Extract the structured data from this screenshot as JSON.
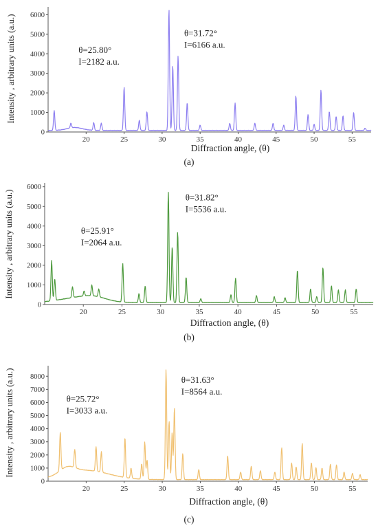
{
  "chart_data": [
    {
      "type": "line",
      "panel_label": "(a)",
      "xlabel": "Diffraction angle, (θ)",
      "ylabel": "Intensity , arbitrary units (a.u.)",
      "xlim": [
        15.0,
        57.5
      ],
      "ylim": [
        0,
        6400
      ],
      "x_ticks": [
        20,
        25,
        30,
        35,
        40,
        45,
        50,
        55
      ],
      "y_ticks": [
        0,
        1000,
        2000,
        3000,
        4000,
        5000,
        6000
      ],
      "grid": false,
      "color": "#8d7ff0",
      "baseline": 80,
      "bumps": [
        {
          "c": 18.5,
          "w": 1.0,
          "h": 150
        }
      ],
      "peaks": [
        {
          "x": 15.8,
          "y": 1100
        },
        {
          "x": 18.0,
          "y": 320
        },
        {
          "x": 21.0,
          "y": 480
        },
        {
          "x": 22.0,
          "y": 450
        },
        {
          "x": 25.0,
          "y": 2300
        },
        {
          "x": 27.0,
          "y": 600
        },
        {
          "x": 28.0,
          "y": 1050
        },
        {
          "x": 30.9,
          "y": 6300
        },
        {
          "x": 31.4,
          "y": 3400
        },
        {
          "x": 32.1,
          "y": 3880
        },
        {
          "x": 33.3,
          "y": 1500
        },
        {
          "x": 35.0,
          "y": 350
        },
        {
          "x": 38.9,
          "y": 450
        },
        {
          "x": 39.6,
          "y": 1480
        },
        {
          "x": 42.2,
          "y": 450
        },
        {
          "x": 44.6,
          "y": 450
        },
        {
          "x": 46.0,
          "y": 350
        },
        {
          "x": 47.6,
          "y": 1850
        },
        {
          "x": 49.2,
          "y": 900
        },
        {
          "x": 50.0,
          "y": 400
        },
        {
          "x": 50.9,
          "y": 2150
        },
        {
          "x": 52.0,
          "y": 1050
        },
        {
          "x": 52.9,
          "y": 800
        },
        {
          "x": 53.8,
          "y": 820
        },
        {
          "x": 55.2,
          "y": 1000
        },
        {
          "x": 56.7,
          "y": 200
        }
      ],
      "annotations": [
        {
          "line1": "θ=25.80°",
          "line2": "I=2182 a.u.",
          "x": 19.0,
          "y": 4050
        },
        {
          "line1": "θ=31.72°",
          "line2": "I=6166 a.u.",
          "x": 32.9,
          "y": 4900
        }
      ]
    },
    {
      "type": "line",
      "panel_label": "(b)",
      "xlabel": "Diffraction angle, (θ)",
      "ylabel": "Intensity , arbitrary units (a.u.)",
      "xlim": [
        15.0,
        57.5
      ],
      "ylim": [
        0,
        6200
      ],
      "x_ticks": [
        20,
        25,
        30,
        35,
        40,
        45,
        50,
        55
      ],
      "y_ticks": [
        0,
        1000,
        2000,
        3000,
        4000,
        5000,
        6000
      ],
      "grid": false,
      "color": "#4e9a3e",
      "baseline": 100,
      "bumps": [
        {
          "c": 19.5,
          "w": 2.5,
          "h": 250
        },
        {
          "c": 21.5,
          "w": 1.5,
          "h": 150
        }
      ],
      "peaks": [
        {
          "x": 15.9,
          "y": 2150
        },
        {
          "x": 16.3,
          "y": 1200
        },
        {
          "x": 18.6,
          "y": 650
        },
        {
          "x": 20.1,
          "y": 350
        },
        {
          "x": 21.1,
          "y": 650
        },
        {
          "x": 22.0,
          "y": 500
        },
        {
          "x": 25.1,
          "y": 2050
        },
        {
          "x": 27.2,
          "y": 550
        },
        {
          "x": 28.0,
          "y": 950
        },
        {
          "x": 31.0,
          "y": 5750
        },
        {
          "x": 31.5,
          "y": 2950
        },
        {
          "x": 32.2,
          "y": 3700
        },
        {
          "x": 33.3,
          "y": 1400
        },
        {
          "x": 35.2,
          "y": 300
        },
        {
          "x": 39.1,
          "y": 500
        },
        {
          "x": 39.7,
          "y": 1350
        },
        {
          "x": 42.4,
          "y": 450
        },
        {
          "x": 44.7,
          "y": 400
        },
        {
          "x": 46.1,
          "y": 350
        },
        {
          "x": 47.7,
          "y": 1750
        },
        {
          "x": 49.4,
          "y": 800
        },
        {
          "x": 50.2,
          "y": 400
        },
        {
          "x": 51.0,
          "y": 1900
        },
        {
          "x": 52.1,
          "y": 950
        },
        {
          "x": 53.0,
          "y": 750
        },
        {
          "x": 53.9,
          "y": 750
        },
        {
          "x": 55.3,
          "y": 800
        }
      ],
      "annotations": [
        {
          "line1": "θ=25.91°",
          "line2": "I=2064 a.u.",
          "x": 19.7,
          "y": 3600
        },
        {
          "line1": "θ=31.82°",
          "line2": "I=5536 a.u.",
          "x": 33.2,
          "y": 5300
        }
      ]
    },
    {
      "type": "line",
      "panel_label": "(c)",
      "xlabel": "Diffraction angle, (θ)",
      "ylabel": "Intensity , arbitrary units (a.u.)",
      "xlim": [
        15.0,
        57.0
      ],
      "ylim": [
        0,
        8800
      ],
      "x_ticks": [
        20,
        25,
        30,
        35,
        40,
        45,
        50,
        55
      ],
      "y_ticks": [
        0,
        1000,
        2000,
        3000,
        4000,
        5000,
        6000,
        7000,
        8000
      ],
      "grid": false,
      "color": "#f0c070",
      "baseline": 120,
      "bumps": [
        {
          "c": 20.0,
          "w": 3.0,
          "h": 700
        },
        {
          "c": 17.5,
          "w": 1.0,
          "h": 500
        }
      ],
      "peaks": [
        {
          "x": 16.6,
          "y": 3050
        },
        {
          "x": 18.5,
          "y": 1500
        },
        {
          "x": 21.3,
          "y": 2000
        },
        {
          "x": 22.0,
          "y": 1700
        },
        {
          "x": 25.1,
          "y": 3150
        },
        {
          "x": 25.9,
          "y": 900
        },
        {
          "x": 27.3,
          "y": 1300
        },
        {
          "x": 27.7,
          "y": 2950
        },
        {
          "x": 28.0,
          "y": 1600
        },
        {
          "x": 30.5,
          "y": 8500
        },
        {
          "x": 30.9,
          "y": 4600
        },
        {
          "x": 31.3,
          "y": 3700
        },
        {
          "x": 31.6,
          "y": 5600
        },
        {
          "x": 32.7,
          "y": 2100
        },
        {
          "x": 34.8,
          "y": 900
        },
        {
          "x": 38.6,
          "y": 1950
        },
        {
          "x": 40.3,
          "y": 700
        },
        {
          "x": 41.7,
          "y": 1150
        },
        {
          "x": 42.9,
          "y": 800
        },
        {
          "x": 44.8,
          "y": 700
        },
        {
          "x": 45.7,
          "y": 2550
        },
        {
          "x": 47.0,
          "y": 1400
        },
        {
          "x": 47.6,
          "y": 1100
        },
        {
          "x": 48.4,
          "y": 2900
        },
        {
          "x": 49.6,
          "y": 1400
        },
        {
          "x": 50.2,
          "y": 1050
        },
        {
          "x": 51.0,
          "y": 1000
        },
        {
          "x": 52.1,
          "y": 1300
        },
        {
          "x": 52.9,
          "y": 1250
        },
        {
          "x": 53.9,
          "y": 700
        },
        {
          "x": 55.0,
          "y": 600
        },
        {
          "x": 56.0,
          "y": 500
        }
      ],
      "annotations": [
        {
          "line1": "θ=25.72°",
          "line2": "I=3033 a.u.",
          "x": 17.4,
          "y": 6050
        },
        {
          "line1": "θ=31.63°",
          "line2": "I=8564 a.u.",
          "x": 32.5,
          "y": 7500
        }
      ]
    }
  ]
}
